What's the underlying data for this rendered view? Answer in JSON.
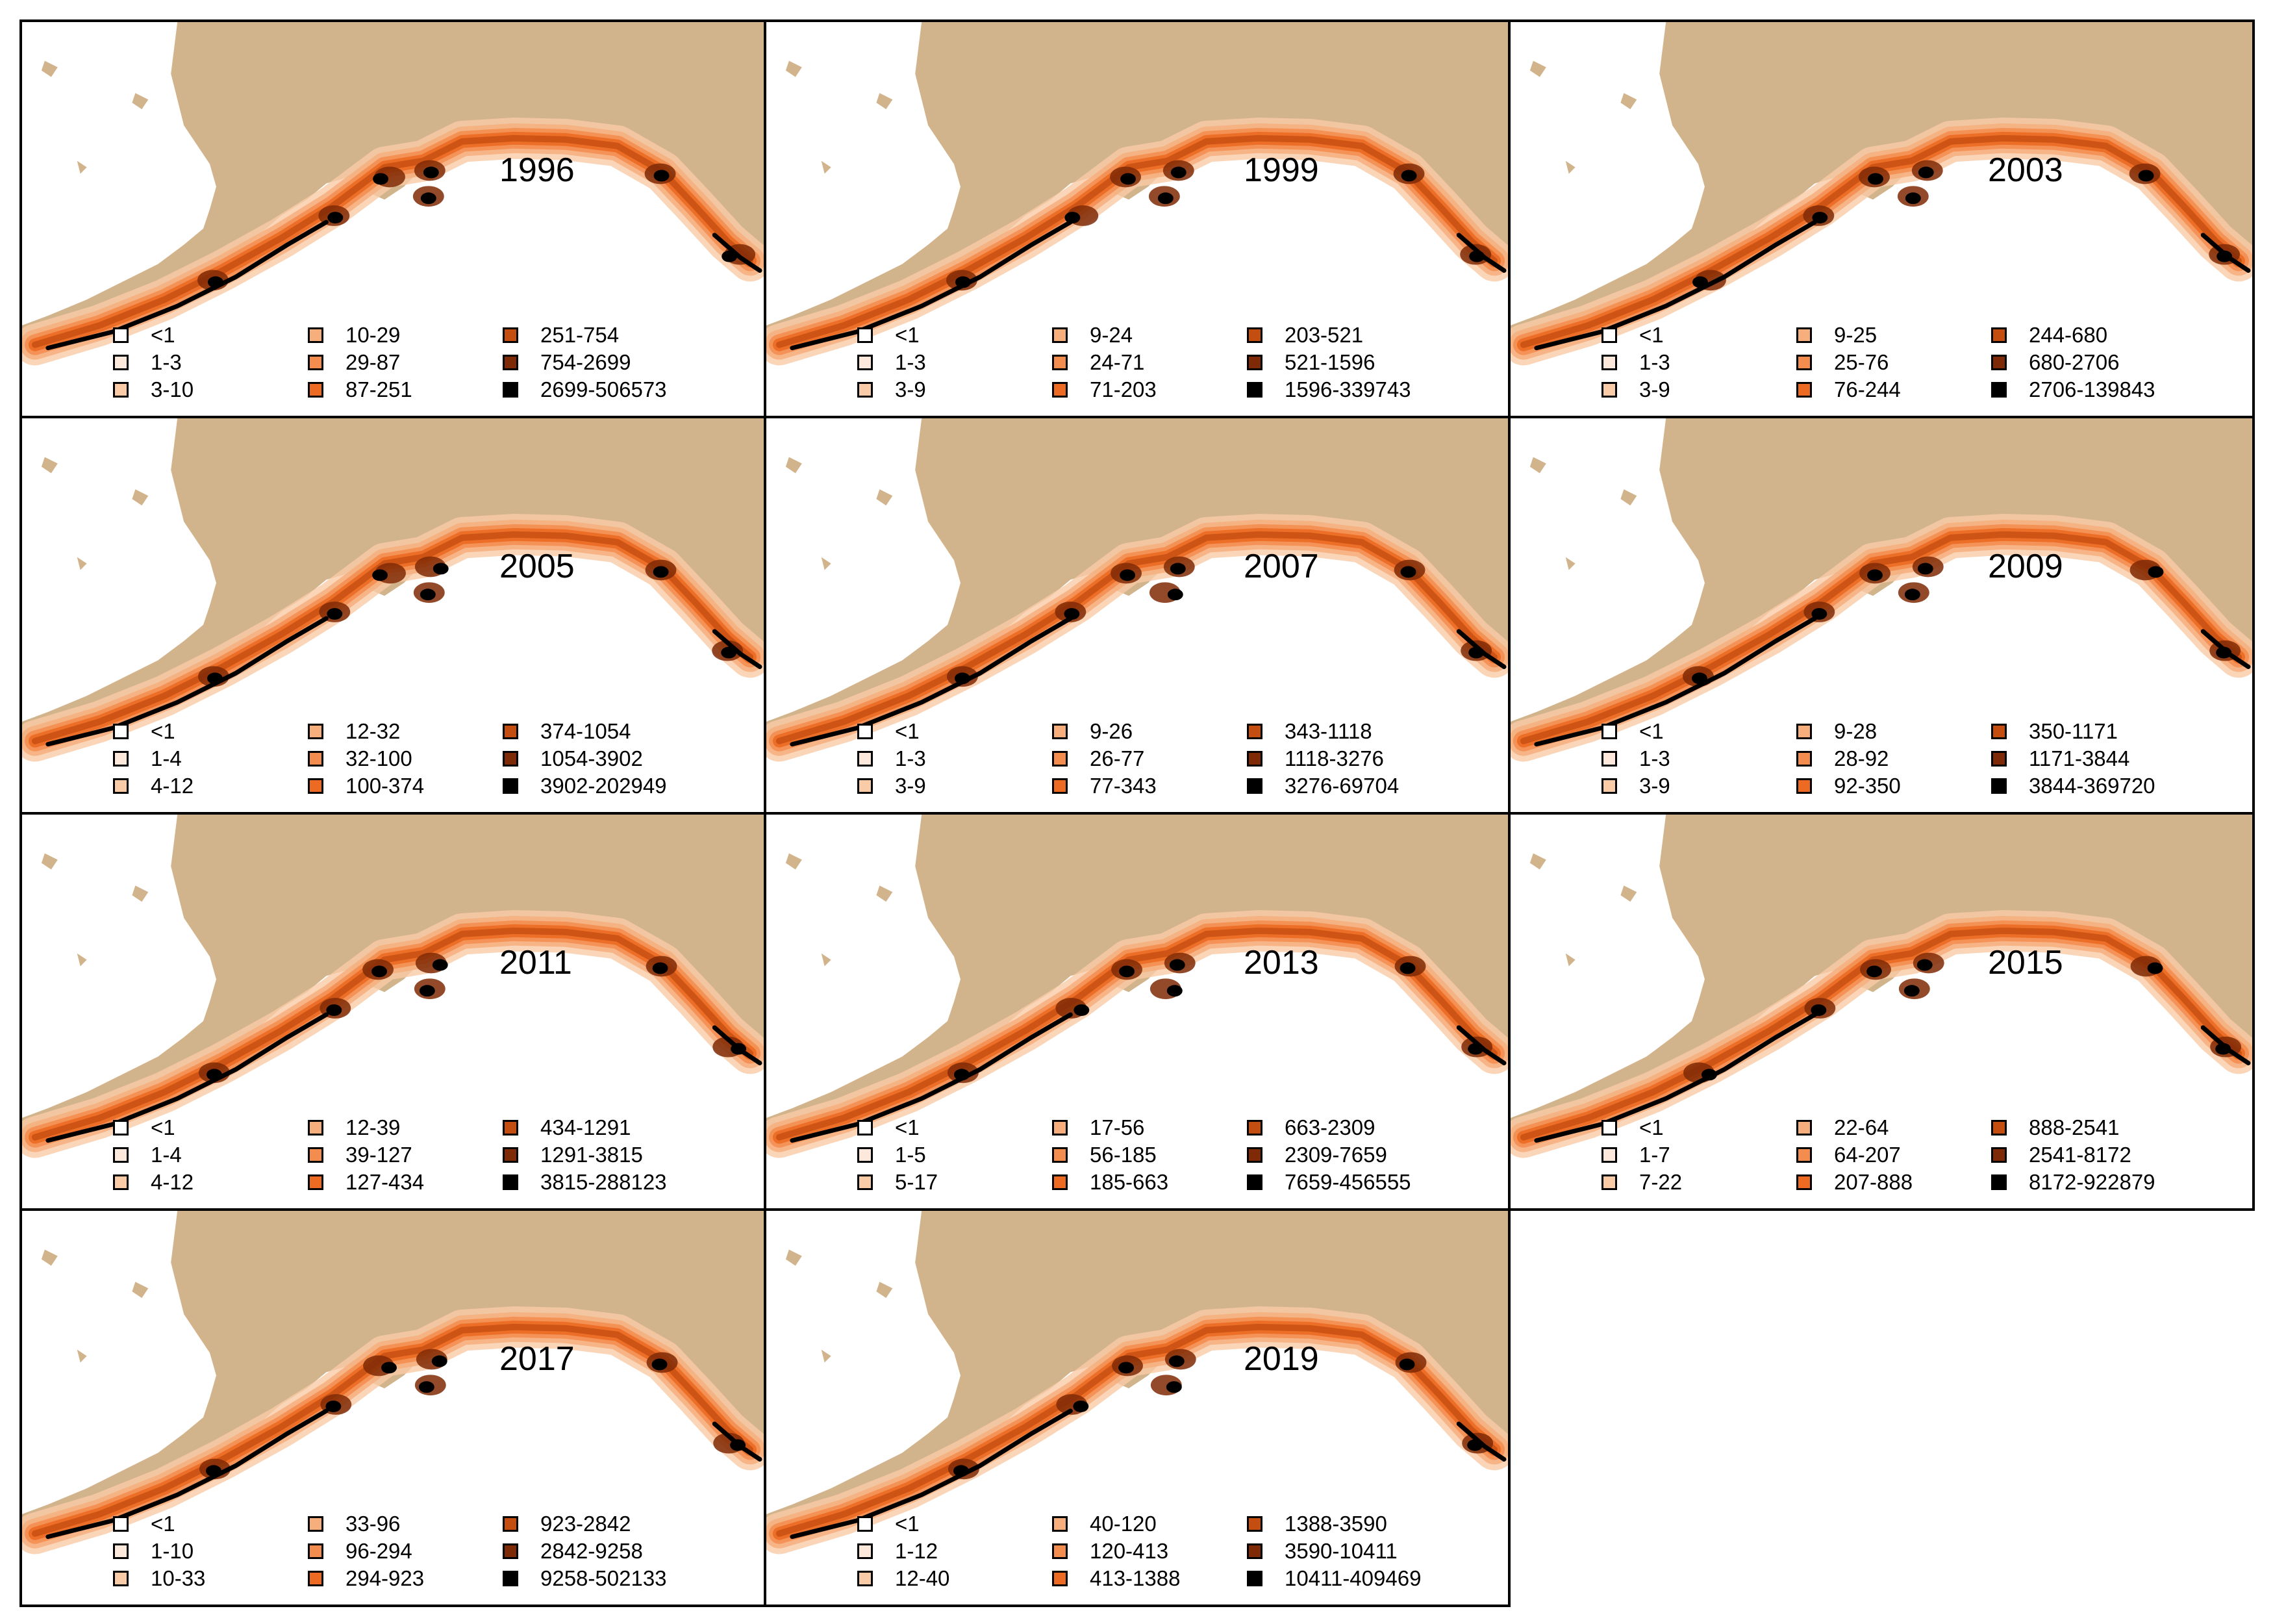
{
  "colors": {
    "land": "#d2b48c",
    "water": "#ffffff",
    "classes": [
      "#ffffff",
      "#fde9dc",
      "#f9cba6",
      "#f6ae7c",
      "#f38c4f",
      "#ec6a22",
      "#c44e10",
      "#7f2a06",
      "#000000"
    ]
  },
  "panels": [
    {
      "year": "1996",
      "classes": [
        "<1",
        "1-3",
        "3-10",
        "10-29",
        "29-87",
        "87-251",
        "251-754",
        "754-2699",
        "2699-506573"
      ]
    },
    {
      "year": "1999",
      "classes": [
        "<1",
        "1-3",
        "3-9",
        "9-24",
        "24-71",
        "71-203",
        "203-521",
        "521-1596",
        "1596-339743"
      ]
    },
    {
      "year": "2003",
      "classes": [
        "<1",
        "1-3",
        "3-9",
        "9-25",
        "25-76",
        "76-244",
        "244-680",
        "680-2706",
        "2706-139843"
      ]
    },
    {
      "year": "2005",
      "classes": [
        "<1",
        "1-4",
        "4-12",
        "12-32",
        "32-100",
        "100-374",
        "374-1054",
        "1054-3902",
        "3902-202949"
      ]
    },
    {
      "year": "2007",
      "classes": [
        "<1",
        "1-3",
        "3-9",
        "9-26",
        "26-77",
        "77-343",
        "343-1118",
        "1118-3276",
        "3276-69704"
      ]
    },
    {
      "year": "2009",
      "classes": [
        "<1",
        "1-3",
        "3-9",
        "9-28",
        "28-92",
        "92-350",
        "350-1171",
        "1171-3844",
        "3844-369720"
      ]
    },
    {
      "year": "2011",
      "classes": [
        "<1",
        "1-4",
        "4-12",
        "12-39",
        "39-127",
        "127-434",
        "434-1291",
        "1291-3815",
        "3815-288123"
      ]
    },
    {
      "year": "2013",
      "classes": [
        "<1",
        "1-5",
        "5-17",
        "17-56",
        "56-185",
        "185-663",
        "663-2309",
        "2309-7659",
        "7659-456555"
      ]
    },
    {
      "year": "2015",
      "classes": [
        "<1",
        "1-7",
        "7-22",
        "22-64",
        "64-207",
        "207-888",
        "888-2541",
        "2541-8172",
        "8172-922879"
      ]
    },
    {
      "year": "2017",
      "classes": [
        "<1",
        "1-10",
        "10-33",
        "33-96",
        "96-294",
        "294-923",
        "923-2842",
        "2842-9258",
        "9258-502133"
      ]
    },
    {
      "year": "2019",
      "classes": [
        "<1",
        "1-12",
        "12-40",
        "40-120",
        "120-413",
        "413-1388",
        "1388-3590",
        "3590-10411",
        "10411-409469"
      ]
    }
  ]
}
